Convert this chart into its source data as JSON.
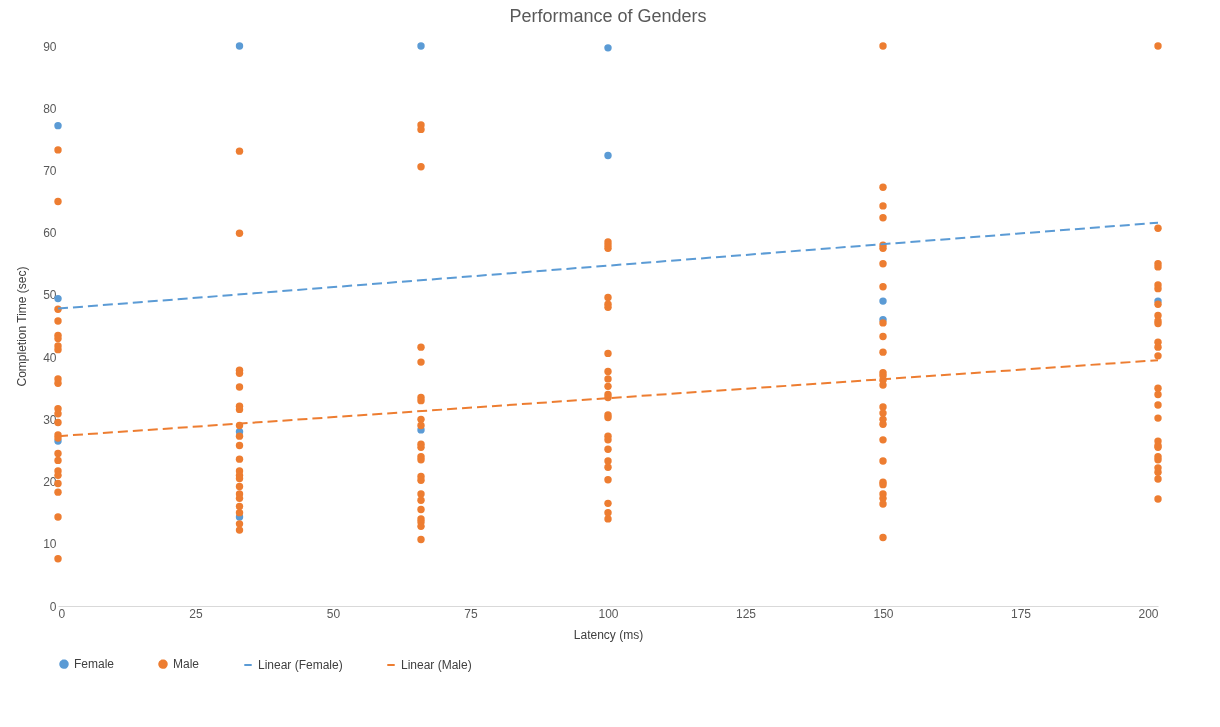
{
  "chart_data": {
    "type": "scatter",
    "title": "Performance of Genders",
    "xlabel": "Latency (ms)",
    "ylabel": "Completion Time (sec)",
    "xlim": [
      0,
      200
    ],
    "xticks": [
      0,
      25,
      50,
      75,
      100,
      125,
      150,
      175,
      200
    ],
    "ylim": [
      0,
      90
    ],
    "yticks": [
      0,
      10,
      20,
      30,
      40,
      50,
      60,
      70,
      80,
      90
    ],
    "grid": false,
    "legend": "bottom",
    "series": [
      {
        "name": "Female",
        "color": "#5b9bd5",
        "marker": "circle",
        "x": [
          0,
          0,
          0,
          33,
          33,
          33,
          66,
          66,
          100,
          100,
          150,
          150,
          200
        ],
        "values": [
          77.2,
          49.4,
          26.5,
          90,
          28,
          14.3,
          90,
          28.3,
          89.7,
          72.4,
          49,
          46,
          49
        ]
      },
      {
        "name": "Male",
        "color": "#ed7d31",
        "marker": "circle",
        "x": [
          0,
          0,
          0,
          0,
          0,
          0,
          0,
          0,
          0,
          0,
          0,
          0,
          0,
          0,
          0,
          0,
          0,
          0,
          0,
          0,
          0,
          0,
          0,
          33,
          33,
          33,
          33,
          33,
          33,
          33,
          33,
          33,
          33,
          33,
          33,
          33,
          33,
          33,
          33,
          33,
          33,
          33,
          33,
          33,
          66,
          66,
          66,
          66,
          66,
          66,
          66,
          66,
          66,
          66,
          66,
          66,
          66,
          66,
          66,
          66,
          66,
          66,
          66,
          66,
          66,
          66,
          100,
          100,
          100,
          100,
          100,
          100,
          100,
          100,
          100,
          100,
          100,
          100,
          100,
          100,
          100,
          100,
          100,
          100,
          100,
          100,
          100,
          100,
          100,
          150,
          150,
          150,
          150,
          150,
          150,
          150,
          150,
          150,
          150,
          150,
          150,
          150,
          150,
          150,
          150,
          150,
          150,
          150,
          150,
          150,
          150,
          150,
          150,
          150,
          150,
          150,
          200,
          200,
          200,
          200,
          200,
          200,
          200,
          200,
          200,
          200,
          200,
          200,
          200,
          200,
          200,
          200,
          200,
          200,
          200,
          200,
          200,
          200,
          200,
          200,
          200,
          200
        ],
        "values": [
          73.3,
          65,
          47.7,
          45.8,
          43.5,
          43,
          41.8,
          41.2,
          36.5,
          35.8,
          31.7,
          30.9,
          29.5,
          27.5,
          27,
          24.5,
          23.4,
          21.7,
          21,
          19.7,
          18.3,
          14.3,
          7.6,
          73.1,
          59.9,
          37.9,
          37.4,
          35.2,
          32.1,
          31.6,
          29,
          27.3,
          25.8,
          23.6,
          21.7,
          21,
          20.5,
          19.2,
          18,
          17.3,
          16,
          15,
          13.2,
          12.2,
          77.3,
          76.6,
          70.6,
          41.6,
          39.2,
          33.5,
          33,
          30,
          29,
          26,
          25.5,
          24,
          23.5,
          20.8,
          20.2,
          18,
          17,
          15.5,
          14,
          13.5,
          12.8,
          10.7,
          58.5,
          58,
          57.5,
          49.6,
          48.5,
          48,
          40.6,
          37.7,
          36.5,
          35.3,
          34,
          33.5,
          30.7,
          30.3,
          27.3,
          26.7,
          25.2,
          23.3,
          22.3,
          20.3,
          16.5,
          15,
          14,
          90,
          67.3,
          64.3,
          62.4,
          58,
          57.5,
          55,
          51.3,
          45.5,
          43.3,
          40.8,
          37.5,
          37,
          36.3,
          35.5,
          32,
          31,
          30,
          29.2,
          26.7,
          23.3,
          19.9,
          19.5,
          18,
          17.3,
          16.4,
          11,
          90,
          60.7,
          55,
          54.5,
          51.6,
          51,
          48.5,
          46.7,
          45.8,
          45.4,
          42.4,
          41.6,
          40.2,
          35,
          32.3,
          30.2,
          26.5,
          25.8,
          25.5,
          24,
          23.5,
          22.2,
          21.5,
          20.4,
          17.2,
          34
        ]
      },
      {
        "name": "Linear (Female)",
        "type": "line",
        "line_style": "dashed",
        "color": "#5b9bd5",
        "x": [
          0,
          200
        ],
        "values": [
          47.8,
          61.6
        ]
      },
      {
        "name": "Linear (Male)",
        "type": "line",
        "line_style": "dashed",
        "color": "#ed7d31",
        "x": [
          0,
          200
        ],
        "values": [
          27.3,
          39.5
        ]
      }
    ]
  }
}
